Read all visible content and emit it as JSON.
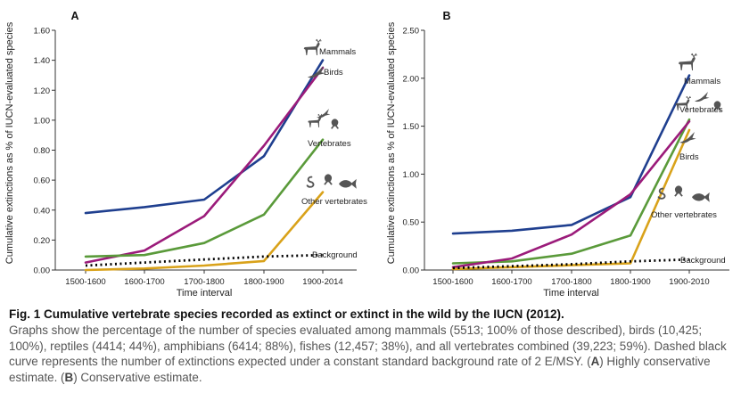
{
  "chart_data": [
    {
      "panel": "A",
      "type": "line",
      "title": "",
      "xlabel": "Time interval",
      "ylabel": "Cumulative extinctions as % of IUCN-evaluated species",
      "categories": [
        "1500-1600",
        "1600-1700",
        "1700-1800",
        "1800-1900",
        "1900-2014"
      ],
      "ylim": [
        0,
        1.6
      ],
      "yticks": [
        "0.00",
        "0.20",
        "0.40",
        "0.60",
        "0.80",
        "1.00",
        "1.20",
        "1.40",
        "1.60"
      ],
      "grid": false,
      "series": [
        {
          "name": "Mammals",
          "color": "#1f3f8f",
          "style": "solid",
          "values": [
            0.38,
            0.42,
            0.47,
            0.76,
            1.4
          ]
        },
        {
          "name": "Birds",
          "color": "#9b1b7a",
          "style": "solid",
          "values": [
            0.05,
            0.13,
            0.36,
            0.83,
            1.35
          ]
        },
        {
          "name": "Vertebrates",
          "color": "#5a9a3a",
          "style": "solid",
          "values": [
            0.09,
            0.1,
            0.18,
            0.37,
            0.87
          ]
        },
        {
          "name": "Other vertebrates",
          "color": "#d9a21a",
          "style": "solid",
          "values": [
            0.0,
            0.01,
            0.03,
            0.06,
            0.52
          ]
        },
        {
          "name": "Background",
          "color": "#000000",
          "style": "dotted",
          "values": [
            0.03,
            0.05,
            0.07,
            0.09,
            0.1
          ]
        }
      ]
    },
    {
      "panel": "B",
      "type": "line",
      "title": "",
      "xlabel": "Time interval",
      "ylabel": "Cumulative extinctions as % of IUCN-evaluated species",
      "categories": [
        "1500-1600",
        "1600-1700",
        "1700-1800",
        "1800-1900",
        "1900-2010"
      ],
      "ylim": [
        0,
        2.5
      ],
      "yticks": [
        "0.00",
        "0.50",
        "1.00",
        "1.50",
        "2.00",
        "2.50"
      ],
      "grid": false,
      "series": [
        {
          "name": "Mammals",
          "color": "#1f3f8f",
          "style": "solid",
          "values": [
            0.38,
            0.41,
            0.47,
            0.76,
            2.03
          ]
        },
        {
          "name": "Vertebrates",
          "color": "#5a9a3a",
          "style": "solid",
          "values": [
            0.07,
            0.09,
            0.17,
            0.36,
            1.57
          ]
        },
        {
          "name": "Birds",
          "color": "#9b1b7a",
          "style": "solid",
          "values": [
            0.03,
            0.12,
            0.37,
            0.79,
            1.55
          ]
        },
        {
          "name": "Other vertebrates",
          "color": "#d9a21a",
          "style": "solid",
          "values": [
            0.01,
            0.03,
            0.05,
            0.07,
            1.46
          ]
        },
        {
          "name": "Background",
          "color": "#000000",
          "style": "dotted",
          "values": [
            0.02,
            0.04,
            0.06,
            0.09,
            0.11
          ]
        }
      ]
    }
  ],
  "caption": {
    "fig_label": "Fig. 1",
    "title": "Cumulative vertebrate species recorded as extinct or extinct in the wild by the IUCN (2012).",
    "body_1": "Graphs show the percentage of the number of species evaluated among mammals (5513; 100% of those described), birds (10,425; 100%), reptiles (4414; 44%), amphibians (6414; 88%), fishes (12,457; 38%), and all vertebrates combined (39,223; 59%). Dashed black curve represents the number of extinctions expected under a constant standard background rate of 2 E/MSY. (",
    "label_a": "A",
    "body_2": ") Highly conservative estimate. (",
    "label_b": "B",
    "body_3": ") Conservative estimate."
  }
}
